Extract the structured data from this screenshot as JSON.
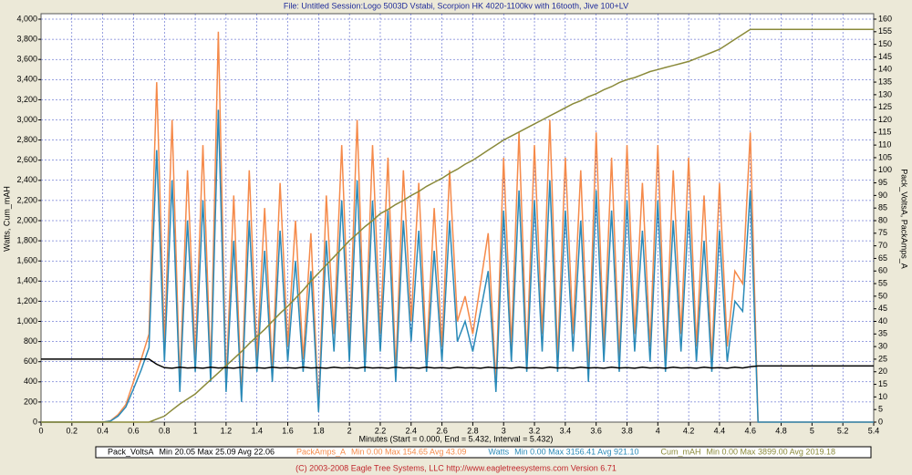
{
  "chart_data": {
    "type": "line",
    "title": "File: Untitled   Session:Logo 5003D Vstabi, Scorpion HK 4020-1100kv with 16tooth, Jive 100+LV",
    "xlabel": "Minutes (Start = 0.000,  End = 5.432,  Interval = 5.432)",
    "ylabel": "Watts, Cum_mAH",
    "y2label": "Pack_VoltsA, PackAmps_A",
    "footer": "(C) 2003-2008 Eagle Tree Systems, LLC      http://www.eagletreesystems.com      Version 6.71",
    "grid": true,
    "xlim": [
      0,
      5.4
    ],
    "xticks": [
      0,
      0.2,
      0.4,
      0.6,
      0.8,
      1,
      1.2,
      1.4,
      1.6,
      1.8,
      2,
      2.2,
      2.4,
      2.6,
      2.8,
      3,
      3.2,
      3.4,
      3.6,
      3.8,
      4,
      4.2,
      4.4,
      4.6,
      4.8,
      5,
      5.2,
      5.4
    ],
    "ylim": [
      0,
      4000
    ],
    "yticks": [
      0,
      200,
      400,
      600,
      800,
      {
        "value": 1000,
        "label": "1,000"
      },
      {
        "value": 1200,
        "label": "1,200"
      },
      {
        "value": 1400,
        "label": "1,400"
      },
      {
        "value": 1600,
        "label": "1,600"
      },
      {
        "value": 1800,
        "label": "1,800"
      },
      {
        "value": 2000,
        "label": "2,000"
      },
      {
        "value": 2200,
        "label": "2,200"
      },
      {
        "value": 2400,
        "label": "2,400"
      },
      {
        "value": 2600,
        "label": "2,600"
      },
      {
        "value": 2800,
        "label": "2,800"
      },
      {
        "value": 3000,
        "label": "3,000"
      },
      {
        "value": 3200,
        "label": "3,200"
      },
      {
        "value": 3400,
        "label": "3,400"
      },
      {
        "value": 3600,
        "label": "3,600"
      },
      {
        "value": 3800,
        "label": "3,800"
      },
      {
        "value": 4000,
        "label": "4,000"
      }
    ],
    "y2lim": [
      0,
      160
    ],
    "y2ticks": [
      0,
      5,
      10,
      15,
      20,
      25,
      30,
      35,
      40,
      45,
      50,
      55,
      60,
      65,
      70,
      75,
      80,
      85,
      90,
      95,
      100,
      105,
      110,
      115,
      120,
      125,
      130,
      135,
      140,
      145,
      150,
      155,
      160
    ],
    "x": [
      0,
      0.05,
      0.1,
      0.15,
      0.2,
      0.25,
      0.3,
      0.35,
      0.4,
      0.45,
      0.5,
      0.55,
      0.6,
      0.65,
      0.7,
      0.75,
      0.8,
      0.85,
      0.9,
      0.95,
      1,
      1.05,
      1.1,
      1.15,
      1.2,
      1.25,
      1.3,
      1.35,
      1.4,
      1.45,
      1.5,
      1.55,
      1.6,
      1.65,
      1.7,
      1.75,
      1.8,
      1.85,
      1.9,
      1.95,
      2,
      2.05,
      2.1,
      2.15,
      2.2,
      2.25,
      2.3,
      2.35,
      2.4,
      2.45,
      2.5,
      2.55,
      2.6,
      2.65,
      2.7,
      2.75,
      2.8,
      2.85,
      2.9,
      2.95,
      3,
      3.05,
      3.1,
      3.15,
      3.2,
      3.25,
      3.3,
      3.35,
      3.4,
      3.45,
      3.5,
      3.55,
      3.6,
      3.65,
      3.7,
      3.75,
      3.8,
      3.85,
      3.9,
      3.95,
      4,
      4.05,
      4.1,
      4.15,
      4.2,
      4.25,
      4.3,
      4.35,
      4.4,
      4.45,
      4.5,
      4.55,
      4.6,
      4.65,
      4.7,
      4.75,
      4.8,
      4.85,
      4.9,
      4.95,
      5,
      5.05,
      5.1,
      5.15,
      5.2,
      5.25,
      5.3,
      5.35,
      5.4
    ],
    "series": [
      {
        "name": "PackAmps_A",
        "color": "#f58a4a",
        "axis": "y2",
        "stats": "Min 0.00   Max 154.65   Avg 43.09",
        "values": [
          0,
          0,
          0,
          0,
          0,
          0,
          0,
          0,
          0,
          0.5,
          3,
          7,
          16,
          25,
          35,
          135,
          30,
          120,
          15,
          100,
          25,
          110,
          20,
          155,
          15,
          90,
          10,
          100,
          25,
          85,
          20,
          95,
          30,
          80,
          25,
          75,
          5,
          90,
          35,
          110,
          30,
          120,
          25,
          110,
          35,
          105,
          20,
          100,
          40,
          95,
          25,
          85,
          30,
          100,
          40,
          50,
          35,
          55,
          75,
          15,
          105,
          30,
          115,
          25,
          110,
          35,
          120,
          25,
          105,
          35,
          100,
          20,
          115,
          30,
          105,
          25,
          110,
          35,
          95,
          30,
          110,
          25,
          100,
          35,
          105,
          30,
          90,
          25,
          95,
          30,
          60,
          55,
          115,
          0,
          0,
          0,
          0,
          0,
          0,
          0,
          0,
          0,
          0,
          0,
          0,
          0,
          0,
          0,
          0
        ]
      },
      {
        "name": "Watts",
        "color": "#2a8ab8",
        "stats": "Min 0.00   Max 3156.41   Avg 921.10",
        "values": [
          0,
          0,
          0,
          0,
          0,
          0,
          0,
          0,
          0,
          10,
          60,
          150,
          330,
          520,
          740,
          2700,
          600,
          2400,
          300,
          2000,
          500,
          2200,
          400,
          3100,
          300,
          1800,
          200,
          2000,
          500,
          1700,
          400,
          1900,
          600,
          1600,
          500,
          1500,
          100,
          1800,
          700,
          2200,
          600,
          2400,
          500,
          2200,
          700,
          2100,
          400,
          2000,
          800,
          1900,
          500,
          1700,
          600,
          2000,
          800,
          1000,
          700,
          1100,
          1500,
          300,
          2100,
          600,
          2300,
          500,
          2200,
          700,
          2400,
          500,
          2100,
          700,
          2000,
          400,
          2300,
          600,
          2100,
          500,
          2200,
          700,
          1900,
          600,
          2200,
          500,
          2000,
          700,
          2100,
          600,
          1800,
          500,
          1900,
          600,
          1200,
          1100,
          2300,
          0,
          0,
          0,
          0,
          0,
          0,
          0,
          0,
          0,
          0,
          0,
          0,
          0,
          0,
          0,
          0
        ]
      },
      {
        "name": "Cum_mAH",
        "color": "#8a8a3a",
        "stats": "Min 0.00   Max 3899.00   Avg 2019.18",
        "values": [
          0,
          0,
          0,
          0,
          0,
          0,
          0,
          0,
          0,
          0,
          0,
          0,
          0,
          0,
          0,
          30,
          60,
          120,
          180,
          230,
          280,
          350,
          420,
          490,
          560,
          630,
          700,
          780,
          850,
          920,
          1000,
          1080,
          1150,
          1230,
          1310,
          1400,
          1480,
          1560,
          1640,
          1720,
          1800,
          1870,
          1940,
          2000,
          2070,
          2110,
          2160,
          2200,
          2250,
          2290,
          2340,
          2380,
          2420,
          2470,
          2510,
          2560,
          2600,
          2650,
          2700,
          2750,
          2800,
          2840,
          2880,
          2920,
          2960,
          3000,
          3040,
          3080,
          3120,
          3160,
          3190,
          3230,
          3260,
          3300,
          3330,
          3370,
          3400,
          3420,
          3450,
          3480,
          3500,
          3520,
          3540,
          3560,
          3580,
          3610,
          3640,
          3670,
          3700,
          3750,
          3800,
          3850,
          3899,
          3899,
          3899,
          3899,
          3899,
          3899,
          3899,
          3899,
          3899,
          3899,
          3899,
          3899,
          3899,
          3899,
          3899,
          3899,
          3899
        ]
      },
      {
        "name": "Pack_VoltsA",
        "color": "#000000",
        "axis": "y2",
        "stats": "Min 20.05   Max 25.09   Avg 22.06",
        "values": [
          25,
          25,
          25,
          25,
          25,
          25,
          25,
          25,
          25,
          25,
          25,
          25,
          25,
          25,
          25,
          23,
          21.6,
          21.4,
          21.8,
          21.5,
          21.6,
          21.4,
          21.8,
          21.5,
          21.6,
          21.4,
          21.8,
          21.5,
          21.6,
          21.4,
          21.8,
          21.5,
          21.6,
          21.4,
          21.8,
          21.5,
          21.6,
          21.4,
          21.8,
          21.5,
          21.6,
          21.4,
          21.8,
          21.5,
          21.6,
          21.4,
          21.8,
          21.5,
          21.6,
          21.4,
          21.8,
          21.5,
          21.6,
          21.4,
          21.8,
          21.5,
          21.6,
          21.4,
          21.8,
          21.5,
          21.6,
          21.4,
          21.8,
          21.5,
          21.6,
          21.4,
          21.8,
          21.5,
          21.6,
          21.4,
          21.8,
          21.5,
          21.6,
          21.4,
          21.8,
          21.5,
          21.6,
          21.4,
          21.8,
          21.5,
          21.6,
          21.4,
          21.8,
          21.5,
          21.6,
          21.4,
          21.8,
          21.5,
          21.6,
          21.4,
          21.8,
          21.5,
          22,
          22.3,
          22.3,
          22.3,
          22.3,
          22.3,
          22.3,
          22.3,
          22.3,
          22.3,
          22.3,
          22.3,
          22.3,
          22.3,
          22.3,
          22.3,
          22.3
        ]
      }
    ],
    "legend_order": [
      3,
      0,
      1,
      2
    ]
  }
}
